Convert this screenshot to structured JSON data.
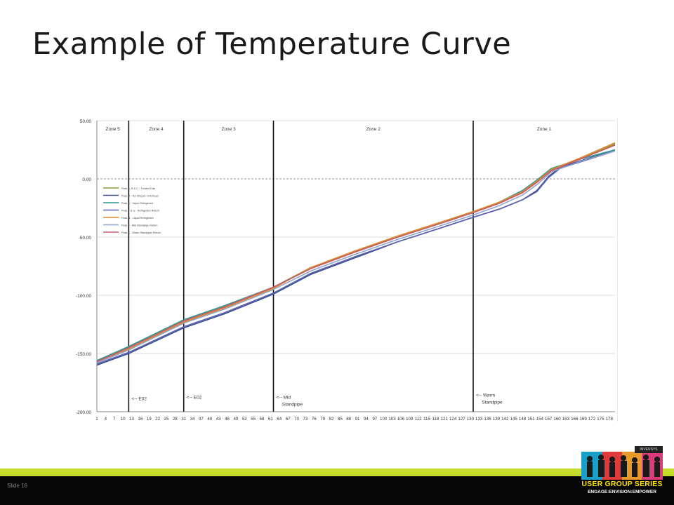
{
  "slide": {
    "title": "Example of Temperature Curve",
    "number_label": "Slide 16"
  },
  "logo": {
    "brand": "INVENSYS",
    "series": "USER GROUP SERIES",
    "tagline": "ENGAGE:ENVISION:EMPOWER"
  },
  "colors": {
    "footer_stripe": "#c5dc2a",
    "footer_bar": "#050505"
  },
  "chart_data": {
    "type": "line",
    "title": "",
    "xlabel": "",
    "ylabel": "",
    "ylim": [
      -200,
      50
    ],
    "yticks": [
      "50.00",
      "0.00",
      "-50.00",
      "-100.00",
      "-150.00",
      "-200.00"
    ],
    "ytick_values": [
      50,
      0,
      -50,
      -100,
      -150,
      -200
    ],
    "xlim": [
      1,
      180
    ],
    "xticks": [
      1,
      4,
      7,
      10,
      13,
      16,
      19,
      22,
      25,
      28,
      31,
      34,
      37,
      40,
      43,
      46,
      49,
      52,
      55,
      58,
      61,
      64,
      67,
      70,
      73,
      76,
      79,
      82,
      85,
      88,
      91,
      94,
      97,
      100,
      103,
      106,
      109,
      112,
      115,
      118,
      121,
      124,
      127,
      130,
      133,
      136,
      139,
      142,
      145,
      148,
      151,
      154,
      157,
      160,
      163,
      166,
      169,
      172,
      175,
      178
    ],
    "grid": "horizontal",
    "zones": [
      {
        "label": "Zone 5",
        "start": 1,
        "end": 12
      },
      {
        "label": "Zone 4",
        "start": 12,
        "end": 31
      },
      {
        "label": "Zone 3",
        "start": 31,
        "end": 62
      },
      {
        "label": "Zone 2",
        "start": 62,
        "end": 131
      },
      {
        "label": "Zone 1",
        "start": 131,
        "end": 180
      }
    ],
    "dividers": [
      12,
      31,
      62,
      131
    ],
    "annotations": [
      {
        "text": "<-- E02",
        "x": 13,
        "y": -190
      },
      {
        "text": "<-- E02",
        "x": 32,
        "y": -189
      },
      {
        "text": "<-- Mid",
        "x": 63,
        "y": -189
      },
      {
        "text": "Standpipe",
        "x": 65,
        "y": -195
      },
      {
        "text": "<-- Warm",
        "x": 132,
        "y": -187
      },
      {
        "text": "Standpipe",
        "x": 134,
        "y": -193
      }
    ],
    "legend_position": "top-left",
    "series": [
      {
        "name": "Pass A, B & C - Treated Gas",
        "color": "#8a9a3a",
        "x": [
          1,
          12,
          31,
          45,
          62,
          75,
          90,
          105,
          120,
          131,
          140,
          148,
          153,
          158,
          168,
          180
        ],
        "y": [
          -157,
          -145,
          -122,
          -110,
          -93,
          -76,
          -63,
          -50,
          -38,
          -29,
          -21,
          -11,
          -2,
          8,
          17,
          30
        ]
      },
      {
        "name": "Pass D - N2 Stripper Overhead",
        "color": "#3a4f8c",
        "x": [
          1,
          12,
          31,
          45,
          62,
          75,
          90,
          105,
          120,
          131,
          140,
          148,
          153,
          157,
          161,
          170,
          180
        ],
        "y": [
          -160,
          -150,
          -128,
          -116,
          -99,
          -82,
          -68,
          -54,
          -42,
          -33,
          -26,
          -18,
          -10,
          2,
          10,
          17,
          25
        ]
      },
      {
        "name": "Pass E - Vapor Refrigerant",
        "color": "#2f9a90",
        "x": [
          1,
          12,
          31,
          45,
          62,
          75,
          90,
          105,
          120,
          131,
          140,
          148,
          153,
          158,
          168,
          180
        ],
        "y": [
          -156,
          -144,
          -121,
          -109,
          -93,
          -77,
          -63,
          -50,
          -38,
          -29,
          -20,
          -10,
          -1,
          9,
          17,
          25
        ]
      },
      {
        "name": "Pass F & G - Refrigerant Return",
        "color": "#5a60b0",
        "x": [
          1,
          12,
          31,
          45,
          62,
          75,
          90,
          105,
          120,
          131,
          140,
          148,
          153,
          157,
          161,
          170,
          180
        ],
        "y": [
          -159,
          -149,
          -127,
          -115,
          -98,
          -81,
          -67,
          -54,
          -42,
          -33,
          -26,
          -18,
          -11,
          1,
          9,
          16,
          24
        ]
      },
      {
        "name": "Pass H - Liquid Refrigerant",
        "color": "#e08a2a",
        "x": [
          1,
          12,
          31,
          45,
          62,
          75,
          90,
          105,
          120,
          131,
          140,
          148,
          153,
          158,
          168,
          180
        ],
        "y": [
          -158,
          -146,
          -123,
          -111,
          -94,
          -76,
          -62,
          -49,
          -37,
          -28,
          -20,
          -11,
          -2,
          8,
          18,
          31
        ]
      },
      {
        "name": "Pass J - Mid Standpipe Return",
        "color": "#8fa4cc",
        "x": [
          1,
          12,
          31,
          45,
          62,
          75,
          90,
          105,
          120,
          131,
          140,
          148,
          153,
          158,
          168,
          180
        ],
        "y": [
          -158,
          -147,
          -124,
          -112,
          -95,
          -79,
          -65,
          -52,
          -40,
          -31,
          -23,
          -14,
          -5,
          6,
          15,
          24
        ]
      },
      {
        "name": "Pass K - Warm Standpipe Return",
        "color": "#c85a6a",
        "x": [
          1,
          12,
          31,
          45,
          62,
          75,
          90,
          105,
          120,
          131,
          140,
          148,
          153,
          158,
          168,
          180
        ],
        "y": [
          -157,
          -145,
          -122,
          -110,
          -93,
          -77,
          -63,
          -50,
          -38,
          -29,
          -21,
          -12,
          -3,
          7,
          17,
          29
        ]
      }
    ]
  }
}
